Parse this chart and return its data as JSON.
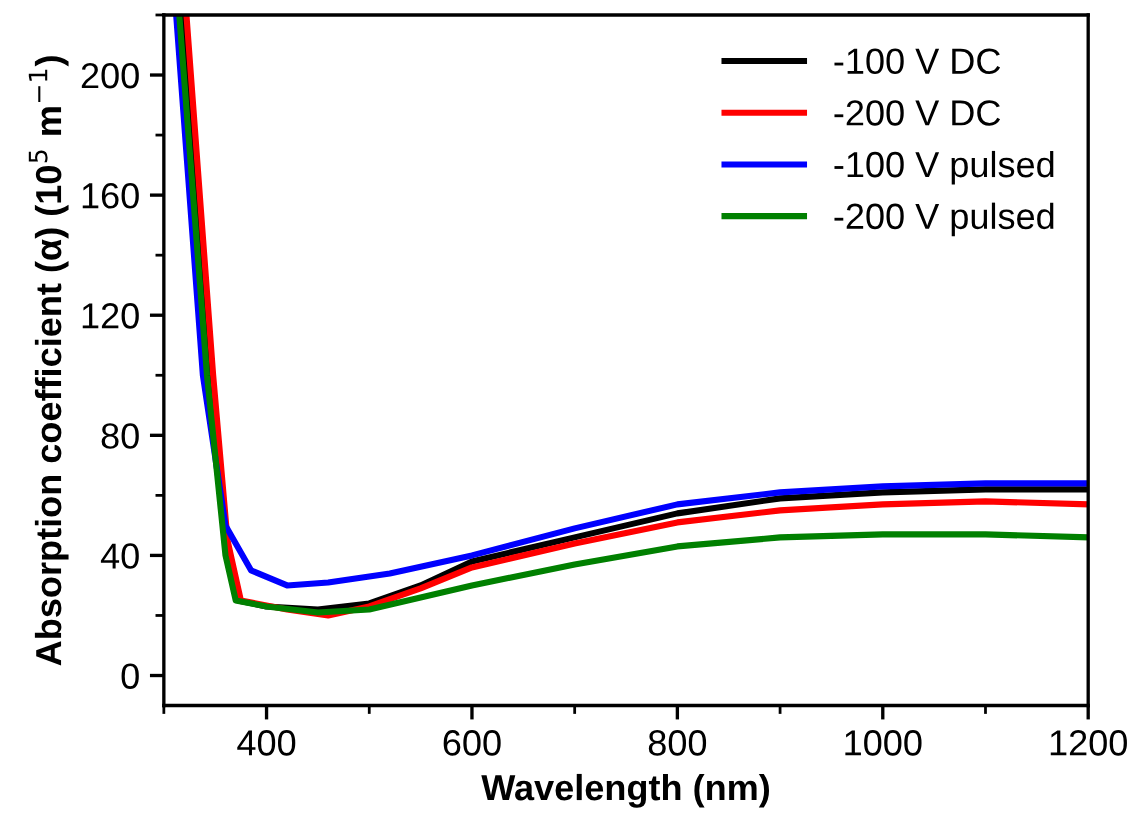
{
  "chart_data": {
    "type": "line",
    "xlabel": "Wavelength (nm)",
    "ylabel": "Absorption coefficient (α) (10$^{5}$ m$^{−1}$)",
    "xlim": [
      300,
      1200
    ],
    "xticks": [
      400,
      600,
      800,
      1000,
      1200
    ],
    "ylim": [
      -10,
      220
    ],
    "yticks": [
      0,
      40,
      80,
      120,
      160,
      200
    ],
    "legend": "top right",
    "grid": false,
    "series": [
      {
        "name": "-100 V DC",
        "color": "#000000",
        "x": [
          318,
          345,
          360,
          372,
          400,
          450,
          500,
          550,
          600,
          700,
          800,
          900,
          1000,
          1100,
          1200
        ],
        "values": [
          220,
          100,
          45,
          25,
          23,
          22,
          24,
          30,
          38,
          46,
          54,
          59,
          61,
          62,
          62
        ]
      },
      {
        "name": "-200 V DC",
        "color": "#ff0000",
        "x": [
          322,
          348,
          362,
          375,
          420,
          460,
          500,
          550,
          600,
          700,
          800,
          900,
          1000,
          1100,
          1200
        ],
        "values": [
          220,
          100,
          45,
          25,
          22,
          20,
          23,
          29,
          36,
          44,
          51,
          55,
          57,
          58,
          57
        ]
      },
      {
        "name": "-100 V pulsed",
        "color": "#0000ff",
        "x": [
          312,
          338,
          360,
          385,
          420,
          460,
          520,
          600,
          700,
          800,
          900,
          1000,
          1100,
          1200
        ],
        "values": [
          220,
          100,
          50,
          35,
          30,
          31,
          34,
          40,
          49,
          57,
          61,
          63,
          64,
          64
        ]
      },
      {
        "name": "-200 V pulsed",
        "color": "#008000",
        "x": [
          315,
          342,
          360,
          370,
          400,
          450,
          500,
          550,
          600,
          700,
          800,
          900,
          1000,
          1100,
          1200
        ],
        "values": [
          220,
          100,
          40,
          25,
          23,
          21,
          22,
          26,
          30,
          37,
          43,
          46,
          47,
          47,
          46
        ]
      }
    ]
  }
}
